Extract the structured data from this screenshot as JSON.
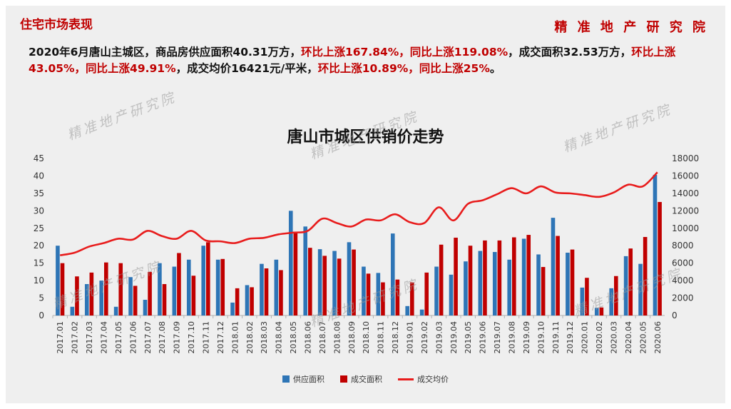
{
  "header": {
    "section_title": "住宅市场表现",
    "brand": "精 准 地 产 研 究 院"
  },
  "summary": {
    "p1": "2020年6月唐山主城区，商品房供应面积40.31万方，",
    "p2": "环比上涨167.84%，同比上涨119.08%",
    "p3": "，成交面积32.53万方，",
    "p4": "环比上涨43.05%，同比上涨49.91%",
    "p5": "，成交均价16421元/平米，",
    "p6": "环比上涨10.89%，同比上涨25%",
    "p7": "。"
  },
  "watermark_text": "精准地产研究院",
  "colors": {
    "supply": "#2e75b6",
    "deal": "#c00000",
    "price": "#e81c1c",
    "text_red": "#c00000",
    "background": "#efefef"
  },
  "chart_data": {
    "type": "bar",
    "title": "唐山市城区供销价走势",
    "categories": [
      "2017.01",
      "2017.02",
      "2017.03",
      "2017.04",
      "2017.05",
      "2017.06",
      "2017.07",
      "2017.08",
      "2017.09",
      "2017.10",
      "2017.11",
      "2017.12",
      "2018.01",
      "2018.02",
      "2018.03",
      "2018.04",
      "2018.05",
      "2018.06",
      "2018.07",
      "2018.08",
      "2018.09",
      "2018.10",
      "2018.11",
      "2018.12",
      "2019.01",
      "2019.02",
      "2019.03",
      "2019.04",
      "2019.05",
      "2019.06",
      "2019.07",
      "2019.08",
      "2019.09",
      "2019.10",
      "2019.11",
      "2019.12",
      "2020.01",
      "2020.02",
      "2020.03",
      "2020.04",
      "2020.05",
      "2020.06"
    ],
    "series": [
      {
        "name": "供应面积",
        "type": "bar",
        "axis": "left",
        "values": [
          20,
          2.5,
          9,
          10,
          2.5,
          11,
          4.5,
          15,
          14,
          16,
          20,
          16,
          3.7,
          8.7,
          14.8,
          16,
          30,
          25.5,
          19,
          18.5,
          21,
          14,
          12.2,
          23.5,
          2.7,
          1.7,
          14,
          11.7,
          15.5,
          18.5,
          18.2,
          16,
          22,
          17.5,
          28,
          18,
          8,
          2.2,
          7.8,
          17,
          14.8,
          40.31
        ]
      },
      {
        "name": "成交面积",
        "type": "bar",
        "axis": "left",
        "values": [
          15,
          11.2,
          12.3,
          15.2,
          15,
          8.5,
          12.5,
          9,
          17.9,
          11.4,
          21,
          16.2,
          7.8,
          8.1,
          13.5,
          13,
          24,
          19.4,
          17.1,
          16.3,
          18.9,
          12,
          9.5,
          10.3,
          9.5,
          12.3,
          20.3,
          22.3,
          20,
          21.5,
          21.5,
          22.4,
          23.1,
          13.9,
          22.8,
          18.9,
          10.8,
          2.3,
          11.3,
          19.2,
          22.5,
          32.53
        ]
      },
      {
        "name": "成交均价",
        "type": "line",
        "axis": "right",
        "values": [
          6900,
          7200,
          7900,
          8300,
          8800,
          8700,
          9700,
          9100,
          8800,
          9700,
          8600,
          8500,
          8300,
          8800,
          8900,
          9300,
          9500,
          9700,
          11100,
          10600,
          10200,
          11000,
          10900,
          11600,
          10700,
          10600,
          12400,
          10900,
          12800,
          13200,
          13900,
          14600,
          14000,
          14800,
          14100,
          14000,
          13800,
          13600,
          14100,
          15000,
          14800,
          16421
        ]
      }
    ],
    "ylim_left": [
      0,
      45
    ],
    "ylim_right": [
      0,
      18000
    ],
    "yticks_left": [
      0,
      5,
      10,
      15,
      20,
      25,
      30,
      35,
      40,
      45
    ],
    "yticks_right": [
      0,
      2000,
      4000,
      6000,
      8000,
      10000,
      12000,
      14000,
      16000,
      18000
    ],
    "legend": [
      "供应面积",
      "成交面积",
      "成交均价"
    ],
    "legend_position": "bottom",
    "grid": false
  }
}
